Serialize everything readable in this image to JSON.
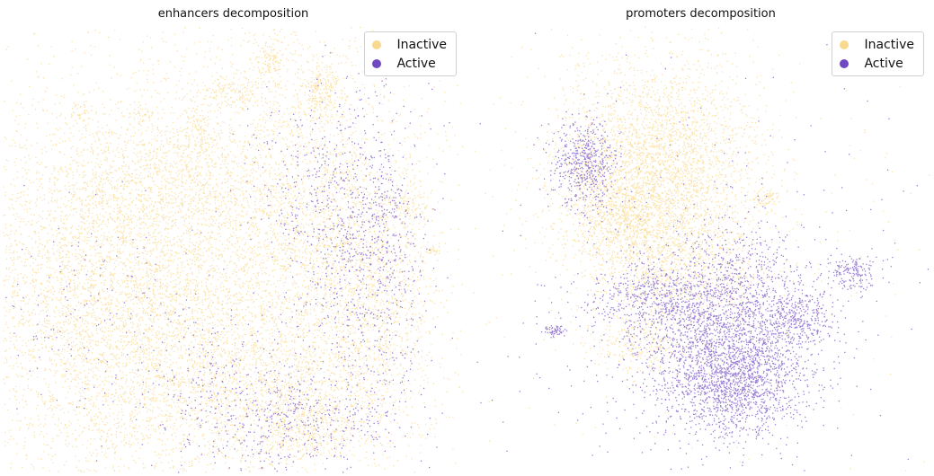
{
  "colors": {
    "inactive": "#f9d98e",
    "active": "#6f48c2"
  },
  "chart_data": [
    {
      "type": "scatter",
      "title": "enhancers decomposition",
      "xlabel": "",
      "ylabel": "",
      "axes_visible": false,
      "legend_position": "top-right",
      "legend": [
        "Inactive",
        "Active"
      ],
      "series": [
        {
          "name": "Inactive",
          "color": "#f9d98e",
          "clusters": [
            {
              "cx": 120,
              "cy": 330,
              "sx": 95,
              "sy": 105,
              "n": 5000
            },
            {
              "cx": 270,
              "cy": 290,
              "sx": 105,
              "sy": 140,
              "n": 3000
            },
            {
              "cx": 355,
              "cy": 255,
              "sx": 60,
              "sy": 110,
              "n": 1600
            },
            {
              "cx": 300,
              "cy": 430,
              "sx": 90,
              "sy": 45,
              "n": 1100
            },
            {
              "cx": 420,
              "cy": 340,
              "sx": 35,
              "sy": 70,
              "n": 700
            },
            {
              "cx": 175,
              "cy": 200,
              "sx": 70,
              "sy": 30,
              "n": 700
            },
            {
              "cx": 355,
              "cy": 100,
              "sx": 12,
              "sy": 18,
              "n": 250
            },
            {
              "cx": 300,
              "cy": 65,
              "sx": 10,
              "sy": 14,
              "n": 130
            },
            {
              "cx": 262,
              "cy": 100,
              "sx": 20,
              "sy": 10,
              "n": 150
            },
            {
              "cx": 220,
              "cy": 150,
              "sx": 12,
              "sy": 20,
              "n": 120
            },
            {
              "cx": 458,
              "cy": 225,
              "sx": 12,
              "sy": 12,
              "n": 90
            },
            {
              "cx": 483,
              "cy": 278,
              "sx": 5,
              "sy": 3,
              "n": 30
            },
            {
              "cx": 90,
              "cy": 130,
              "sx": 8,
              "sy": 10,
              "n": 40
            },
            {
              "cx": 158,
              "cy": 128,
              "sx": 8,
              "sy": 5,
              "n": 35
            },
            {
              "cx": 340,
              "cy": 480,
              "sx": 30,
              "sy": 20,
              "n": 300
            }
          ]
        },
        {
          "name": "Active",
          "color": "#6f48c2",
          "clusters": [
            {
              "cx": 390,
              "cy": 250,
              "sx": 40,
              "sy": 80,
              "n": 550
            },
            {
              "cx": 420,
              "cy": 330,
              "sx": 30,
              "sy": 70,
              "n": 350
            },
            {
              "cx": 320,
              "cy": 470,
              "sx": 60,
              "sy": 30,
              "n": 450
            },
            {
              "cx": 100,
              "cy": 360,
              "sx": 80,
              "sy": 60,
              "n": 200
            },
            {
              "cx": 250,
              "cy": 420,
              "sx": 40,
              "sy": 35,
              "n": 150
            },
            {
              "cx": 340,
              "cy": 200,
              "sx": 40,
              "sy": 50,
              "n": 150
            },
            {
              "cx": 430,
              "cy": 230,
              "sx": 15,
              "sy": 20,
              "n": 80
            }
          ]
        }
      ]
    },
    {
      "type": "scatter",
      "title": "promoters decomposition",
      "xlabel": "",
      "ylabel": "",
      "axes_visible": false,
      "legend_position": "top-right",
      "legend": [
        "Inactive",
        "Active"
      ],
      "series": [
        {
          "name": "Inactive",
          "color": "#f9d98e",
          "clusters": [
            {
              "cx": 210,
              "cy": 185,
              "sx": 55,
              "sy": 60,
              "n": 3200
            },
            {
              "cx": 180,
              "cy": 245,
              "sx": 35,
              "sy": 25,
              "n": 700
            },
            {
              "cx": 230,
              "cy": 300,
              "sx": 55,
              "sy": 30,
              "n": 700
            },
            {
              "cx": 190,
              "cy": 385,
              "sx": 25,
              "sy": 15,
              "n": 250
            },
            {
              "cx": 240,
              "cy": 240,
              "sx": 200,
              "sy": 150,
              "n": 420
            },
            {
              "cx": 335,
              "cy": 222,
              "sx": 8,
              "sy": 6,
              "n": 60
            }
          ]
        },
        {
          "name": "Active",
          "color": "#6f48c2",
          "clusters": [
            {
              "cx": 285,
              "cy": 370,
              "sx": 50,
              "sy": 55,
              "n": 2600
            },
            {
              "cx": 300,
              "cy": 430,
              "sx": 35,
              "sy": 25,
              "n": 900
            },
            {
              "cx": 130,
              "cy": 180,
              "sx": 18,
              "sy": 25,
              "n": 550
            },
            {
              "cx": 370,
              "cy": 350,
              "sx": 20,
              "sy": 15,
              "n": 300
            },
            {
              "cx": 430,
              "cy": 305,
              "sx": 15,
              "sy": 10,
              "n": 170
            },
            {
              "cx": 97,
              "cy": 368,
              "sx": 6,
              "sy": 3,
              "n": 60
            },
            {
              "cx": 200,
              "cy": 330,
              "sx": 35,
              "sy": 20,
              "n": 350
            },
            {
              "cx": 260,
              "cy": 300,
              "sx": 180,
              "sy": 140,
              "n": 250
            }
          ]
        }
      ]
    }
  ]
}
